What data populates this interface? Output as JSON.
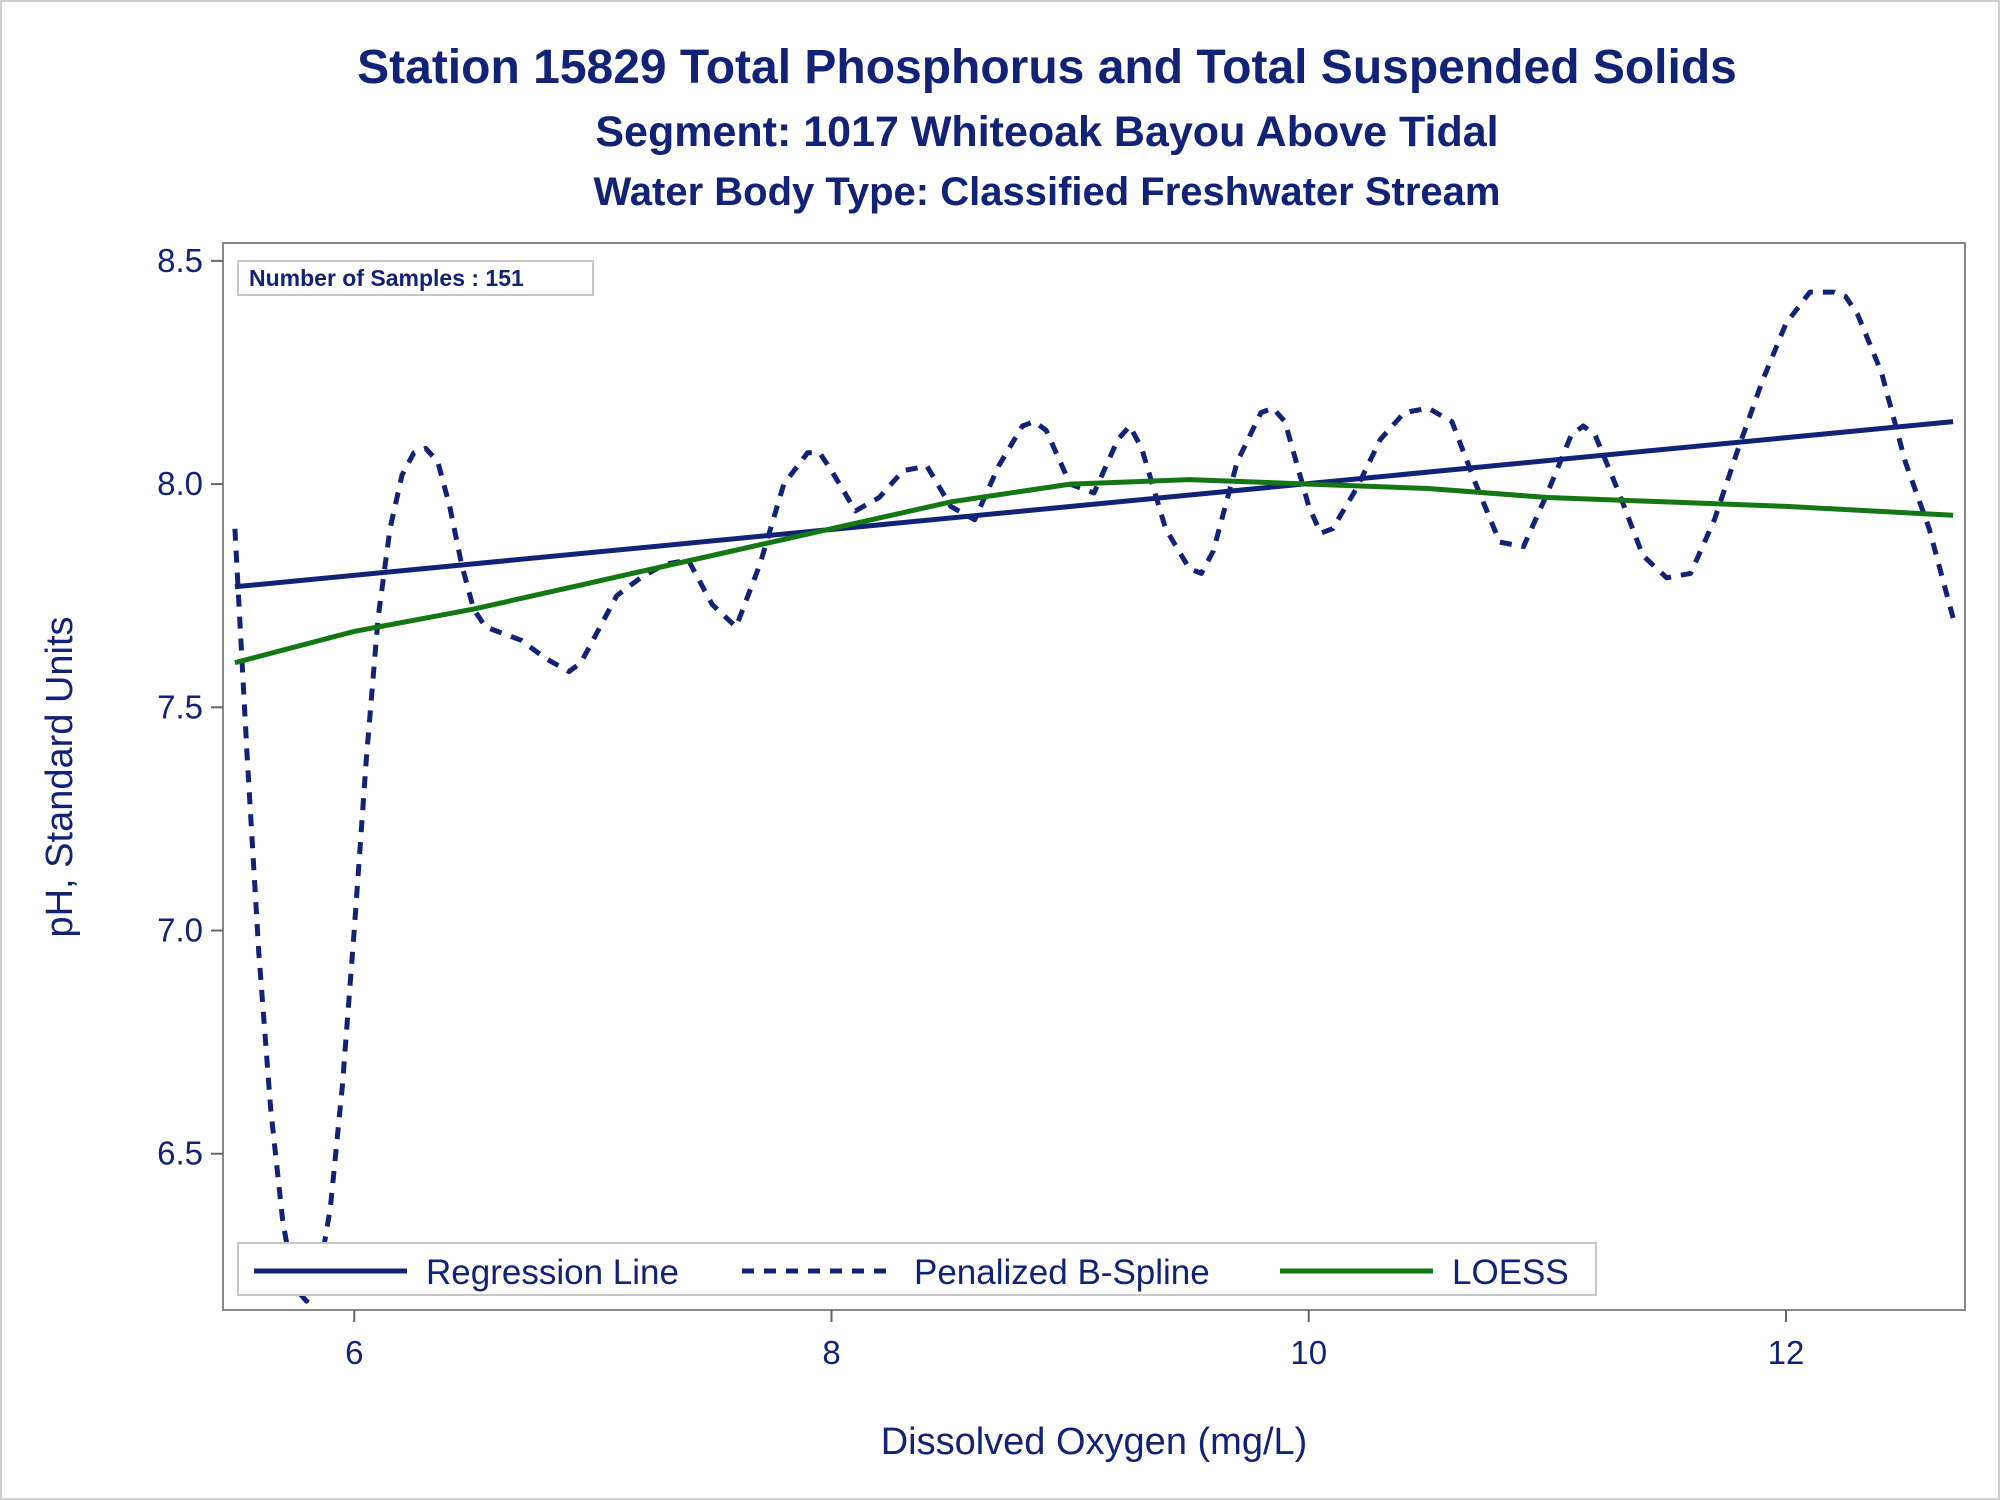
{
  "chart_data": {
    "type": "line",
    "title": "Station 15829  Total Phosphorus and Total Suspended Solids",
    "subtitle": "Segment: 1017  Whiteoak Bayou Above Tidal",
    "subtitle2": "Water Body Type: Classified Freshwater Stream",
    "xlabel": "Dissolved Oxygen (mg/L)",
    "ylabel": "pH, Standard Units",
    "xlim": [
      5.45,
      12.75
    ],
    "ylim": [
      6.15,
      8.54
    ],
    "xticks": [
      6,
      8,
      10,
      12
    ],
    "xtick_labels": [
      "6",
      "8",
      "10",
      "12"
    ],
    "yticks": [
      6.5,
      7.0,
      7.5,
      8.0,
      8.5
    ],
    "ytick_labels": [
      "6.5",
      "7.0",
      "7.5",
      "8.0",
      "8.5"
    ],
    "grid": false,
    "legend_position": "bottom-inside",
    "inset_note": "Number of Samples : 151",
    "series": [
      {
        "name": "Regression Line",
        "style": "solid",
        "color": "#112277",
        "x": [
          5.5,
          12.7
        ],
        "y": [
          7.77,
          8.14
        ]
      },
      {
        "name": "Penalized B-Spline",
        "style": "dashed",
        "color": "#112277",
        "x": [
          5.5,
          5.55,
          5.6,
          5.65,
          5.7,
          5.75,
          5.8,
          5.85,
          5.9,
          5.95,
          6.0,
          6.05,
          6.1,
          6.15,
          6.2,
          6.25,
          6.3,
          6.35,
          6.4,
          6.45,
          6.5,
          6.55,
          6.6,
          6.7,
          6.8,
          6.9,
          6.95,
          7.0,
          7.1,
          7.2,
          7.3,
          7.4,
          7.5,
          7.6,
          7.7,
          7.8,
          7.9,
          7.95,
          8.0,
          8.1,
          8.2,
          8.3,
          8.4,
          8.5,
          8.6,
          8.7,
          8.8,
          8.85,
          8.9,
          9.0,
          9.1,
          9.2,
          9.25,
          9.3,
          9.4,
          9.5,
          9.55,
          9.6,
          9.7,
          9.8,
          9.85,
          9.9,
          10.0,
          10.05,
          10.1,
          10.2,
          10.3,
          10.4,
          10.5,
          10.6,
          10.7,
          10.8,
          10.9,
          11.0,
          11.1,
          11.15,
          11.2,
          11.3,
          11.4,
          11.5,
          11.6,
          11.7,
          11.8,
          11.9,
          12.0,
          12.1,
          12.2,
          12.25,
          12.3,
          12.4,
          12.5,
          12.6,
          12.7
        ],
        "y": [
          7.9,
          7.4,
          6.95,
          6.6,
          6.35,
          6.2,
          6.17,
          6.22,
          6.38,
          6.65,
          7.0,
          7.38,
          7.7,
          7.9,
          8.02,
          8.07,
          8.08,
          8.05,
          7.95,
          7.82,
          7.72,
          7.68,
          7.67,
          7.65,
          7.61,
          7.58,
          7.6,
          7.65,
          7.75,
          7.79,
          7.82,
          7.83,
          7.73,
          7.68,
          7.82,
          8.0,
          8.07,
          8.07,
          8.03,
          7.94,
          7.97,
          8.03,
          8.04,
          7.95,
          7.92,
          8.04,
          8.13,
          8.14,
          8.12,
          8.0,
          7.98,
          8.1,
          8.13,
          8.08,
          7.9,
          7.81,
          7.8,
          7.85,
          8.05,
          8.16,
          8.17,
          8.14,
          7.95,
          7.89,
          7.9,
          7.99,
          8.1,
          8.16,
          8.17,
          8.14,
          8.0,
          7.87,
          7.86,
          7.98,
          8.11,
          8.13,
          8.11,
          7.98,
          7.84,
          7.79,
          7.8,
          7.92,
          8.08,
          8.23,
          8.36,
          8.43,
          8.43,
          8.42,
          8.38,
          8.25,
          8.05,
          7.9,
          7.7
        ]
      },
      {
        "name": "LOESS",
        "style": "solid",
        "color": "#137713",
        "x": [
          5.5,
          6.0,
          6.5,
          7.0,
          7.5,
          8.0,
          8.5,
          9.0,
          9.5,
          10.0,
          10.5,
          11.0,
          11.5,
          12.0,
          12.7
        ],
        "y": [
          7.6,
          7.67,
          7.72,
          7.78,
          7.84,
          7.9,
          7.96,
          8.0,
          8.01,
          8.0,
          7.99,
          7.97,
          7.96,
          7.95,
          7.93
        ]
      }
    ]
  }
}
